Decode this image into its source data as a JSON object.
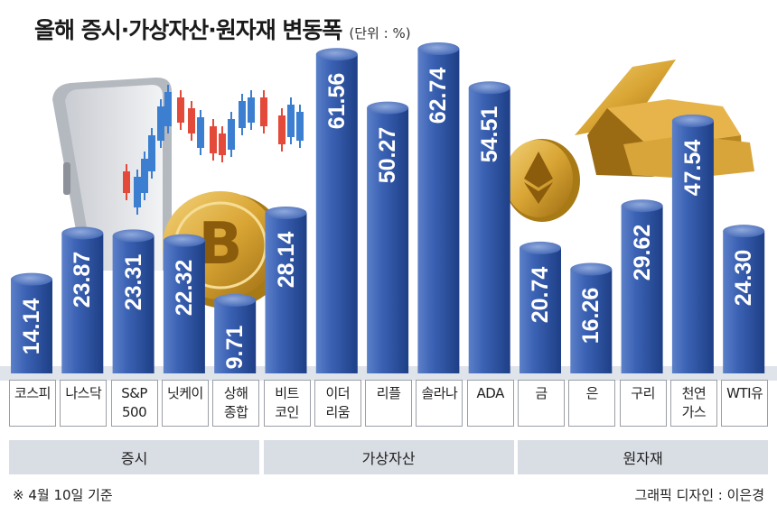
{
  "title": "올해 증시·가상자산·원자재 변동폭",
  "unit": "(단위 : %)",
  "chart_data": {
    "type": "bar",
    "categories": [
      "코스피",
      "나스닥",
      "S&P\n500",
      "닛케이",
      "상해\n종합",
      "비트\n코인",
      "이더\n리움",
      "리플",
      "솔라나",
      "ADA",
      "금",
      "은",
      "구리",
      "천연\n가스",
      "WTI유"
    ],
    "values": [
      14.14,
      23.87,
      23.31,
      22.32,
      9.71,
      28.14,
      61.56,
      50.27,
      62.74,
      54.51,
      20.74,
      16.26,
      29.62,
      47.54,
      24.3
    ],
    "value_labels": [
      "14.14",
      "23.87",
      "23.31",
      "22.32",
      "9.71",
      "28.14",
      "61.56",
      "50.27",
      "62.74",
      "54.51",
      "20.74",
      "16.26",
      "29.62",
      "47.54",
      "24.30"
    ],
    "groups": [
      {
        "name": "증시",
        "count": 5
      },
      {
        "name": "가상자산",
        "count": 5
      },
      {
        "name": "원자재",
        "count": 5
      }
    ],
    "bar_color": "#2f55a4",
    "ylim": [
      0,
      70
    ]
  },
  "footnote": "※ 4월 10일 기준",
  "credit": "그래픽 디자인 : 이은경"
}
